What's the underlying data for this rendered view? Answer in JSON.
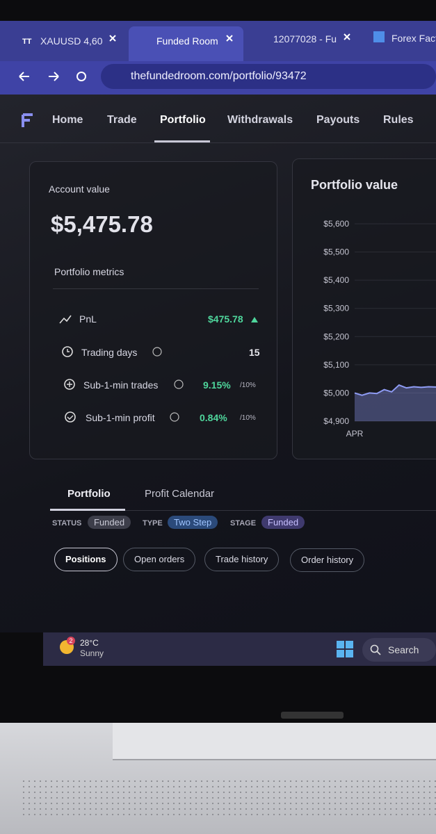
{
  "browser": {
    "tabs": [
      "XAUUSD 4,60",
      "Funded Room",
      "12077028 - Fu",
      "Forex Facto"
    ],
    "url": "thefundedroom.com/portfolio/93472"
  },
  "nav": {
    "items": [
      "Home",
      "Trade",
      "Portfolio",
      "Withdrawals",
      "Payouts",
      "Rules"
    ]
  },
  "account": {
    "label": "Account value",
    "value": "$5,475.78",
    "metrics_title": "Portfolio metrics",
    "metrics": [
      {
        "label": "PnL",
        "value": "$475.78"
      },
      {
        "label": "Trading days",
        "value": 15
      },
      {
        "label": "Sub-1-min trades",
        "value": "9.15%",
        "limit": "/10%"
      },
      {
        "label": "Sub-1-min profit",
        "value": "0.84%",
        "limit": "/10%"
      }
    ]
  },
  "chart_data": {
    "type": "line",
    "title": "Portfolio value",
    "categories": [
      "APR",
      null,
      null,
      null,
      null,
      null,
      null,
      null,
      null,
      null,
      null,
      null
    ],
    "series": [
      {
        "color": "#8f9cf5",
        "values": [
          5000,
          4992,
          5000,
          4998,
          5012,
          5004,
          5028,
          5018,
          5022,
          5020,
          5022,
          5021
        ]
      }
    ],
    "ylim": [
      4900,
      5600
    ],
    "yticks": [
      {
        "value": 4900,
        "label": "$4,900"
      },
      {
        "value": 5000,
        "label": "$5,000"
      },
      {
        "value": 5100,
        "label": "$5,100"
      },
      {
        "value": 5200,
        "label": "$5,200"
      },
      {
        "value": 5300,
        "label": "$5,300"
      },
      {
        "value": 5400,
        "label": "$5,400"
      },
      {
        "value": 5500,
        "label": "$5,500"
      },
      {
        "value": 5600,
        "label": "$5,600"
      }
    ],
    "grid": true
  },
  "tabs": [
    "Portfolio",
    "Profit Calendar"
  ],
  "filters": [
    {
      "key": "STATUS",
      "value": "Funded"
    },
    {
      "key": "TYPE",
      "value": "Two Step"
    },
    {
      "key": "STAGE",
      "value": "Funded"
    }
  ],
  "buttons": [
    "Positions",
    "Open orders",
    "Trade history",
    "Order history"
  ],
  "taskbar": {
    "badge": "2",
    "temperature": "28°C",
    "weather": "Sunny",
    "search": "Search"
  }
}
